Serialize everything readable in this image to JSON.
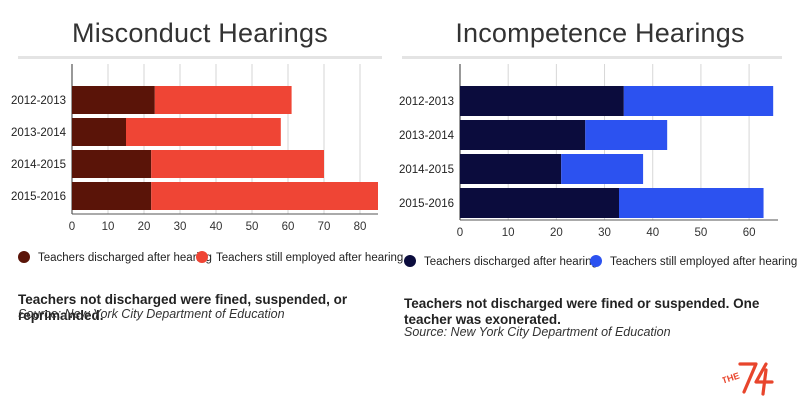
{
  "chart_data": [
    {
      "type": "bar",
      "stacked": true,
      "orientation": "horizontal",
      "title": "Misconduct Hearings",
      "categories": [
        "2012-2013",
        "2013-2014",
        "2014-2015",
        "2015-2016"
      ],
      "series": [
        {
          "name": "Teachers discharged after hearing",
          "color": "#5a1408",
          "values": [
            23,
            15,
            22,
            22
          ]
        },
        {
          "name": "Teachers still employed after hearing",
          "color": "#ef4535",
          "values": [
            38,
            43,
            48,
            63
          ]
        }
      ],
      "xlim": [
        0,
        85
      ],
      "xticks": [
        0,
        10,
        20,
        30,
        40,
        50,
        60,
        70,
        80
      ],
      "grid": true,
      "legend_position": "bottom",
      "note": "Teachers not discharged were fined, suspended, or reprimanded.",
      "source": "Source: New York City Department of Education"
    },
    {
      "type": "bar",
      "stacked": true,
      "orientation": "horizontal",
      "title": "Incompetence Hearings",
      "categories": [
        "2012-2013",
        "2013-2014",
        "2014-2015",
        "2015-2016"
      ],
      "series": [
        {
          "name": "Teachers discharged after hearing",
          "color": "#0b0c3d",
          "values": [
            34,
            26,
            21,
            33
          ]
        },
        {
          "name": "Teachers still employed after hearing",
          "color": "#2c52f0",
          "values": [
            31,
            17,
            17,
            30
          ]
        }
      ],
      "xlim": [
        0,
        66
      ],
      "xticks": [
        0,
        10,
        20,
        30,
        40,
        50,
        60
      ],
      "grid": true,
      "legend_position": "bottom",
      "note": "Teachers not discharged were fined or suspended. One teacher was exonerated.",
      "source": "Source: New York City Department of Education"
    }
  ],
  "logo": {
    "text": "THE 74",
    "color": "#e8452c"
  }
}
